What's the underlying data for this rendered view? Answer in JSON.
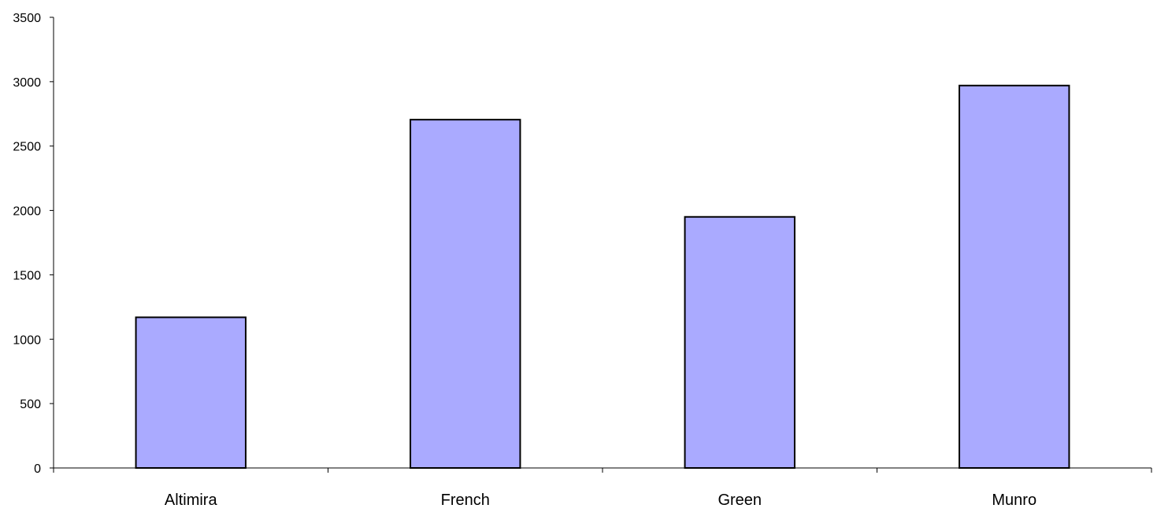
{
  "chart_data": {
    "type": "bar",
    "title": "",
    "xlabel": "",
    "ylabel": "",
    "categories": [
      "Altimira",
      "French",
      "Green",
      "Munro"
    ],
    "values": [
      1170,
      2705,
      1950,
      2970
    ],
    "ylim": [
      0,
      3500
    ],
    "yticks": [
      0,
      500,
      1000,
      1500,
      2000,
      2500,
      3000,
      3500
    ],
    "ytick_labels": [
      "0",
      "500",
      "1000",
      "1500",
      "2000",
      "2500",
      "3000",
      "3500"
    ],
    "grid": false,
    "legend": "none",
    "colors": {
      "bar_fill": "#aaaaff",
      "bar_stroke": "#000000",
      "axis": "#000000"
    }
  }
}
